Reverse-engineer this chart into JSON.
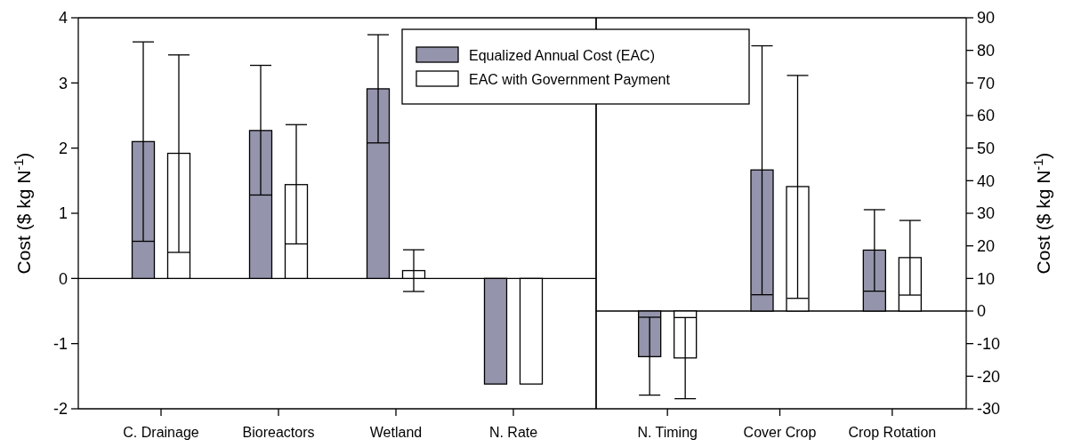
{
  "chart_data": [
    {
      "type": "bar",
      "categories": [
        "C. Drainage",
        "Bioreactors",
        "Wetland",
        "N. Rate"
      ],
      "ylabel": "Cost ($ kg N$^{-1}$)",
      "ylim": [
        -2,
        4
      ],
      "yticks": [
        -2,
        -1,
        0,
        1,
        2,
        3,
        4
      ],
      "legend": "top right",
      "series": [
        {
          "name": "Equalized Annual Cost (EAC)",
          "color": "#9494ac",
          "values": [
            2.1,
            2.27,
            2.91,
            -1.62
          ],
          "errors": [
            [
              0.57,
              3.63
            ],
            [
              1.28,
              3.27
            ],
            [
              2.08,
              3.74
            ],
            null
          ]
        },
        {
          "name": "EAC with Government Payment",
          "color": "#ffffff",
          "values": [
            1.92,
            1.44,
            0.12,
            -1.62
          ],
          "errors": [
            [
              0.4,
              3.43
            ],
            [
              0.53,
              2.36
            ],
            [
              -0.2,
              0.44
            ],
            null
          ]
        }
      ]
    },
    {
      "type": "bar",
      "categories": [
        "N. Timing",
        "Cover Crop",
        "Crop Rotation"
      ],
      "y2label": "Cost ($ kg N$^{-1}$)",
      "y2lim": [
        -30,
        90
      ],
      "y2ticks": [
        -30,
        -20,
        -10,
        0,
        10,
        20,
        30,
        40,
        50,
        60,
        70,
        80,
        90
      ],
      "series": [
        {
          "axis": "y2",
          "color": "#9494ac",
          "values": [
            -14,
            43.3,
            18.7
          ],
          "errors": [
            [
              -25.8,
              -1.9
            ],
            [
              5,
              81.4
            ],
            [
              6.1,
              31.1
            ]
          ]
        },
        {
          "axis": "y2",
          "color": "#ffffff",
          "values": [
            -14.4,
            38.2,
            16.4
          ],
          "errors": [
            [
              -26.9,
              -2
            ],
            [
              3.9,
              72.3
            ],
            [
              4.9,
              27.8
            ]
          ]
        }
      ]
    }
  ]
}
